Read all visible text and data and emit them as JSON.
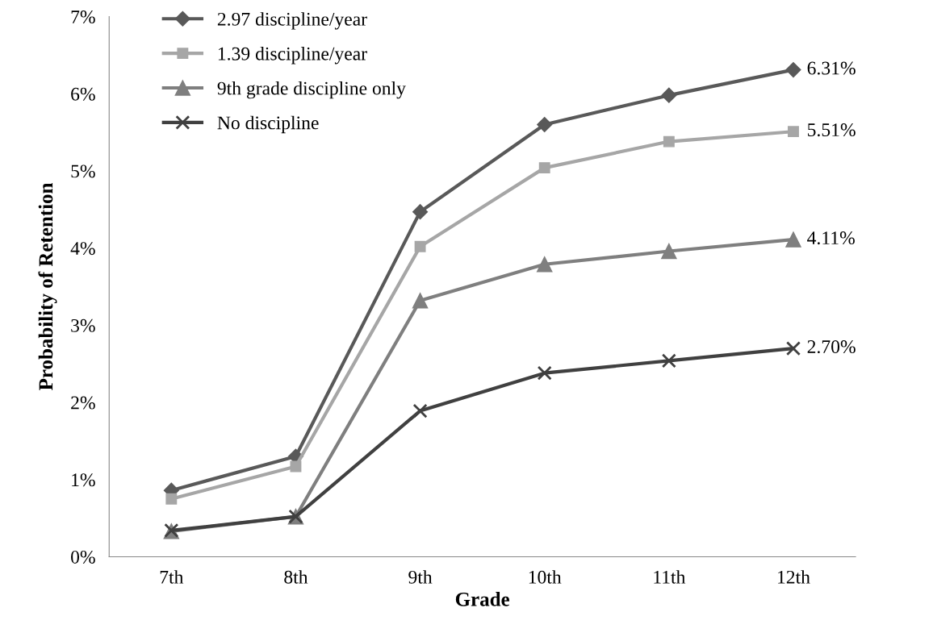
{
  "chart_data": {
    "type": "line",
    "xlabel": "Grade",
    "ylabel": "Probability of Retention",
    "categories": [
      "7th",
      "8th",
      "9th",
      "10th",
      "11th",
      "12th"
    ],
    "series": [
      {
        "name": "2.97 discipline/year",
        "color": "#595959",
        "marker": "diamond",
        "values": [
          0.86,
          1.3,
          4.47,
          5.6,
          5.98,
          6.31
        ],
        "value_labels": [
          null,
          null,
          null,
          null,
          null,
          "6.31%"
        ]
      },
      {
        "name": "1.39 discipline/year",
        "color": "#a6a6a6",
        "marker": "square",
        "values": [
          0.75,
          1.17,
          4.02,
          5.04,
          5.38,
          5.51
        ],
        "value_labels": [
          null,
          null,
          null,
          null,
          null,
          "5.51%"
        ]
      },
      {
        "name": "9th grade discipline only",
        "color": "#7f7f7f",
        "marker": "triangle",
        "values": [
          0.33,
          0.52,
          3.32,
          3.79,
          3.96,
          4.11
        ],
        "value_labels": [
          null,
          null,
          null,
          null,
          null,
          "4.11%"
        ]
      },
      {
        "name": "No discipline",
        "color": "#404040",
        "marker": "cross",
        "values": [
          0.34,
          0.52,
          1.89,
          2.38,
          2.54,
          2.7
        ],
        "value_labels": [
          null,
          null,
          null,
          null,
          null,
          "2.70%"
        ]
      }
    ],
    "ylim": [
      0,
      7
    ],
    "yticks": [
      {
        "value": 0,
        "label": "0%"
      },
      {
        "value": 1,
        "label": "1%"
      },
      {
        "value": 2,
        "label": "2%"
      },
      {
        "value": 3,
        "label": "3%"
      },
      {
        "value": 4,
        "label": "4%"
      },
      {
        "value": 5,
        "label": "5%"
      },
      {
        "value": 6,
        "label": "6%"
      },
      {
        "value": 7,
        "label": "7%"
      }
    ],
    "grid": false,
    "legend": "top left",
    "line_style": "solid"
  }
}
